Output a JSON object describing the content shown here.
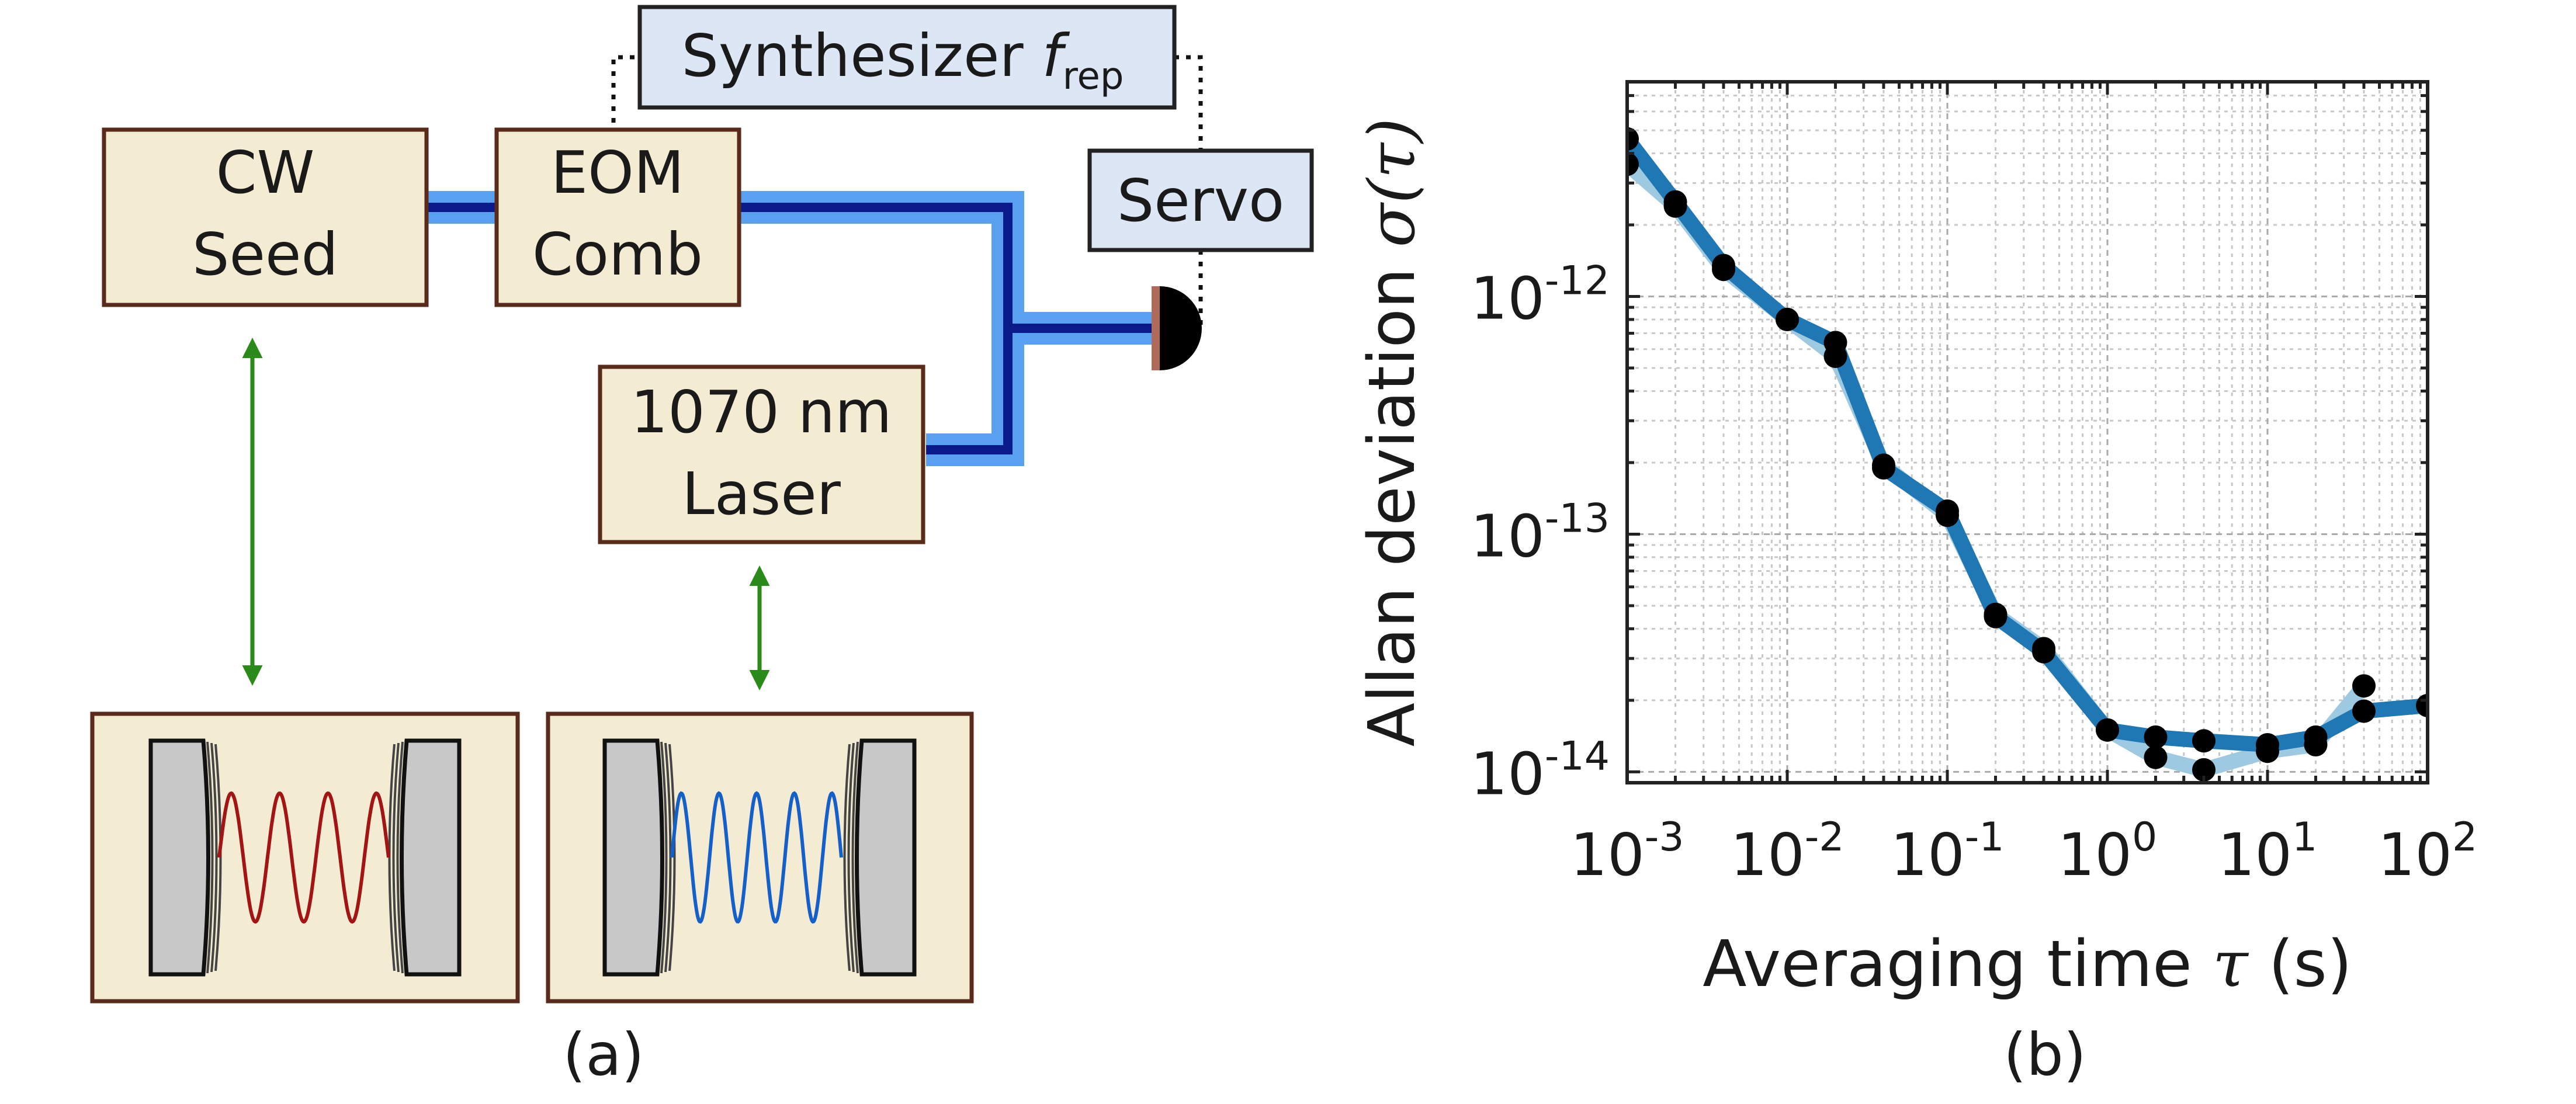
{
  "panel_a": {
    "caption": "(a)",
    "boxes": {
      "cw_seed": {
        "line1": "CW",
        "line2": "Seed"
      },
      "eom_comb": {
        "line1": "EOM",
        "line2": "Comb"
      },
      "laser_1070": {
        "line1": "1070 nm",
        "line2": "Laser"
      },
      "synthesizer": {
        "text": "Synthesizer ",
        "symbol": "f",
        "subscript": "rep"
      },
      "servo": {
        "text": "Servo"
      }
    },
    "colors": {
      "box_fill": "#f3ecd3",
      "box_border": "#5a2a1a",
      "blue_box_fill": "#dde6f5",
      "fiber_light": "#5aa0f0",
      "fiber_dark": "#0a1a8a",
      "arrow_green": "#2a8a1a",
      "wave_red": "#a31515",
      "wave_blue": "#1560c8",
      "mirror_fill": "#c8c8c8"
    },
    "icons": [
      "photodetector-icon",
      "mirror-icon",
      "wave-icon",
      "double-arrow-icon"
    ]
  },
  "panel_b": {
    "caption": "(b)",
    "chart_data": {
      "type": "line",
      "scale": "log-log",
      "xlabel_text": "Averaging time ",
      "xlabel_symbol": "τ",
      "xlabel_unit": " (s)",
      "ylabel_text": "Allan deviation ",
      "ylabel_symbol": "σ(τ)",
      "xlim": [
        0.001,
        100
      ],
      "ylim": [
        9e-15,
        8e-12
      ],
      "grid": true,
      "x_ticks": [
        {
          "base": "10",
          "exp": "-3"
        },
        {
          "base": "10",
          "exp": "-2"
        },
        {
          "base": "10",
          "exp": "-1"
        },
        {
          "base": "10",
          "exp": "0"
        },
        {
          "base": "10",
          "exp": "1"
        },
        {
          "base": "10",
          "exp": "2"
        }
      ],
      "y_ticks": [
        {
          "base": "10",
          "exp": "-12"
        },
        {
          "base": "10",
          "exp": "-13"
        },
        {
          "base": "10",
          "exp": "-14"
        }
      ],
      "series": [
        {
          "color": "#1f77b4",
          "x": [
            0.001,
            0.002,
            0.004,
            0.01,
            0.02,
            0.04,
            0.1,
            0.2,
            0.4,
            1,
            2,
            4,
            10,
            20,
            40,
            100
          ],
          "y": [
            4.6e-12,
            2.5e-12,
            1.35e-12,
            8e-13,
            6.4e-13,
            1.9e-13,
            1.25e-13,
            4.5e-14,
            3.2e-14,
            1.5e-14,
            1.4e-14,
            1.35e-14,
            1.3e-14,
            1.4e-14,
            1.8e-14,
            1.9e-14
          ]
        },
        {
          "color": "#9ecae1",
          "x": [
            0.001,
            0.002,
            0.004,
            0.01,
            0.02,
            0.04,
            0.1,
            0.2,
            0.4,
            1,
            2,
            4,
            10,
            20,
            40
          ],
          "y": [
            3.6e-12,
            2.4e-12,
            1.3e-12,
            8e-13,
            5.6e-13,
            1.95e-13,
            1.2e-13,
            4.6e-14,
            3.3e-14,
            1.5e-14,
            1.15e-14,
            1.02e-14,
            1.22e-14,
            1.3e-14,
            2.3e-14
          ]
        }
      ]
    }
  }
}
